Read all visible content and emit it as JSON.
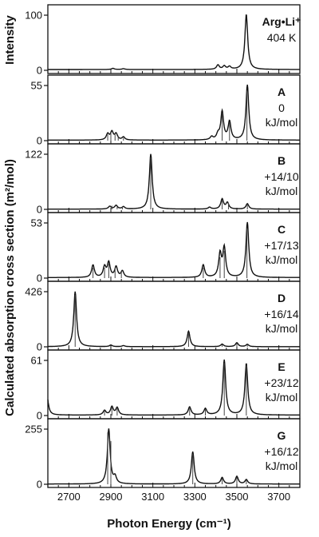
{
  "figure": {
    "xlabel": "Photon Energy (cm⁻¹)",
    "ylabel_top": "Intensity",
    "ylabel_calc": "Calculated absorption cross section  (m²/mol)"
  },
  "chart_data": {
    "type": "line",
    "x_axis": {
      "range": [
        2600,
        3800
      ],
      "ticks": [
        2700,
        2900,
        3100,
        3300,
        3500,
        3700
      ],
      "tick_labels": [
        "2700",
        "2900",
        "3100",
        "3300",
        "3500",
        "3700"
      ],
      "minor_tick_step": 50
    },
    "peak_width_cm": 8,
    "panels": [
      {
        "id": "exp",
        "label_lines": [
          "Arg•Li⁺",
          "404 K"
        ],
        "ymax": 100,
        "y_ticks": [
          "100",
          "0"
        ],
        "yaxis_top": 100,
        "baseline": 1.5,
        "peaks": [
          [
            2910,
            2
          ],
          [
            2960,
            1.5
          ],
          [
            3410,
            8
          ],
          [
            3440,
            6
          ],
          [
            3465,
            5
          ],
          [
            3545,
            100
          ]
        ],
        "sticks": []
      },
      {
        "id": "A",
        "label_lines": [
          "A",
          "0",
          "kJ/mol"
        ],
        "ymax": 55,
        "y_ticks": [
          "55",
          "0"
        ],
        "yaxis_top": 55,
        "baseline": 0.5,
        "peaks": [
          [
            2885,
            6
          ],
          [
            2905,
            8
          ],
          [
            2925,
            6
          ],
          [
            2960,
            3
          ],
          [
            3380,
            3
          ],
          [
            3410,
            5
          ],
          [
            3430,
            28
          ],
          [
            3465,
            18
          ],
          [
            3550,
            55
          ]
        ],
        "sticks": [
          [
            2885,
            6
          ],
          [
            2900,
            8
          ],
          [
            2920,
            7
          ],
          [
            2935,
            5
          ],
          [
            2960,
            3
          ],
          [
            3430,
            28
          ],
          [
            3465,
            18
          ],
          [
            3548,
            50
          ]
        ]
      },
      {
        "id": "B",
        "label_lines": [
          "B",
          "+14/10",
          "kJ/mol"
        ],
        "ymax": 122,
        "y_ticks": [
          "122",
          "0"
        ],
        "yaxis_top": 122,
        "baseline": 0.5,
        "peaks": [
          [
            2895,
            6
          ],
          [
            2925,
            8
          ],
          [
            2960,
            5
          ],
          [
            3090,
            122
          ],
          [
            3370,
            4
          ],
          [
            3430,
            22
          ],
          [
            3455,
            14
          ],
          [
            3550,
            12
          ]
        ],
        "sticks": [
          [
            2905,
            8
          ],
          [
            2930,
            6
          ],
          [
            2955,
            5
          ],
          [
            3090,
            115
          ],
          [
            3430,
            20
          ],
          [
            3460,
            14
          ],
          [
            3550,
            12
          ]
        ]
      },
      {
        "id": "C",
        "label_lines": [
          "C",
          "+17/13",
          "kJ/mol"
        ],
        "ymax": 53,
        "y_ticks": [
          "53",
          "0"
        ],
        "yaxis_top": 53,
        "baseline": 0.5,
        "peaks": [
          [
            2815,
            12
          ],
          [
            2870,
            10
          ],
          [
            2890,
            14
          ],
          [
            2925,
            10
          ],
          [
            2955,
            6
          ],
          [
            3340,
            12
          ],
          [
            3420,
            22
          ],
          [
            3440,
            28
          ],
          [
            3550,
            53
          ]
        ],
        "sticks": [
          [
            2815,
            10
          ],
          [
            2870,
            10
          ],
          [
            2890,
            14
          ],
          [
            2920,
            10
          ],
          [
            2950,
            7
          ],
          [
            3340,
            10
          ],
          [
            3420,
            20
          ],
          [
            3440,
            26
          ],
          [
            3548,
            48
          ]
        ]
      },
      {
        "id": "D",
        "label_lines": [
          "D",
          "+16/14",
          "kJ/mol"
        ],
        "ymax": 426,
        "y_ticks": [
          "426",
          "0"
        ],
        "yaxis_top": 426,
        "baseline": 1,
        "peaks": [
          [
            2730,
            426
          ],
          [
            2900,
            12
          ],
          [
            2960,
            8
          ],
          [
            3270,
            120
          ],
          [
            3430,
            20
          ],
          [
            3500,
            30
          ],
          [
            3550,
            18
          ]
        ],
        "sticks": [
          [
            2730,
            400
          ],
          [
            3270,
            110
          ],
          [
            3430,
            18
          ],
          [
            3500,
            28
          ],
          [
            3550,
            18
          ]
        ]
      },
      {
        "id": "E",
        "label_lines": [
          "E",
          "+23/12",
          "kJ/mol"
        ],
        "ymax": 61,
        "y_ticks": [
          "61",
          "0"
        ],
        "yaxis_top": 61,
        "baseline": 0.5,
        "peaks": [
          [
            2595,
            24
          ],
          [
            2870,
            5
          ],
          [
            2905,
            9
          ],
          [
            2930,
            8
          ],
          [
            3275,
            9
          ],
          [
            3350,
            7
          ],
          [
            3440,
            61
          ],
          [
            3545,
            57
          ]
        ],
        "sticks": [
          [
            2870,
            6
          ],
          [
            2905,
            9
          ],
          [
            2930,
            8
          ],
          [
            3275,
            9
          ],
          [
            3350,
            7
          ],
          [
            3440,
            58
          ],
          [
            3545,
            55
          ]
        ]
      },
      {
        "id": "G",
        "label_lines": [
          "G",
          "+16/12",
          "kJ/mol"
        ],
        "ymax": 255,
        "y_ticks": [
          "255",
          "0"
        ],
        "yaxis_top": 255,
        "baseline": 1,
        "peaks": [
          [
            2890,
            255
          ],
          [
            2920,
            30
          ],
          [
            3290,
            150
          ],
          [
            3430,
            30
          ],
          [
            3500,
            35
          ],
          [
            3545,
            20
          ]
        ],
        "sticks": [
          [
            2885,
            240
          ],
          [
            2900,
            200
          ],
          [
            3290,
            140
          ],
          [
            3430,
            28
          ],
          [
            3500,
            32
          ],
          [
            3545,
            18
          ]
        ]
      }
    ]
  }
}
